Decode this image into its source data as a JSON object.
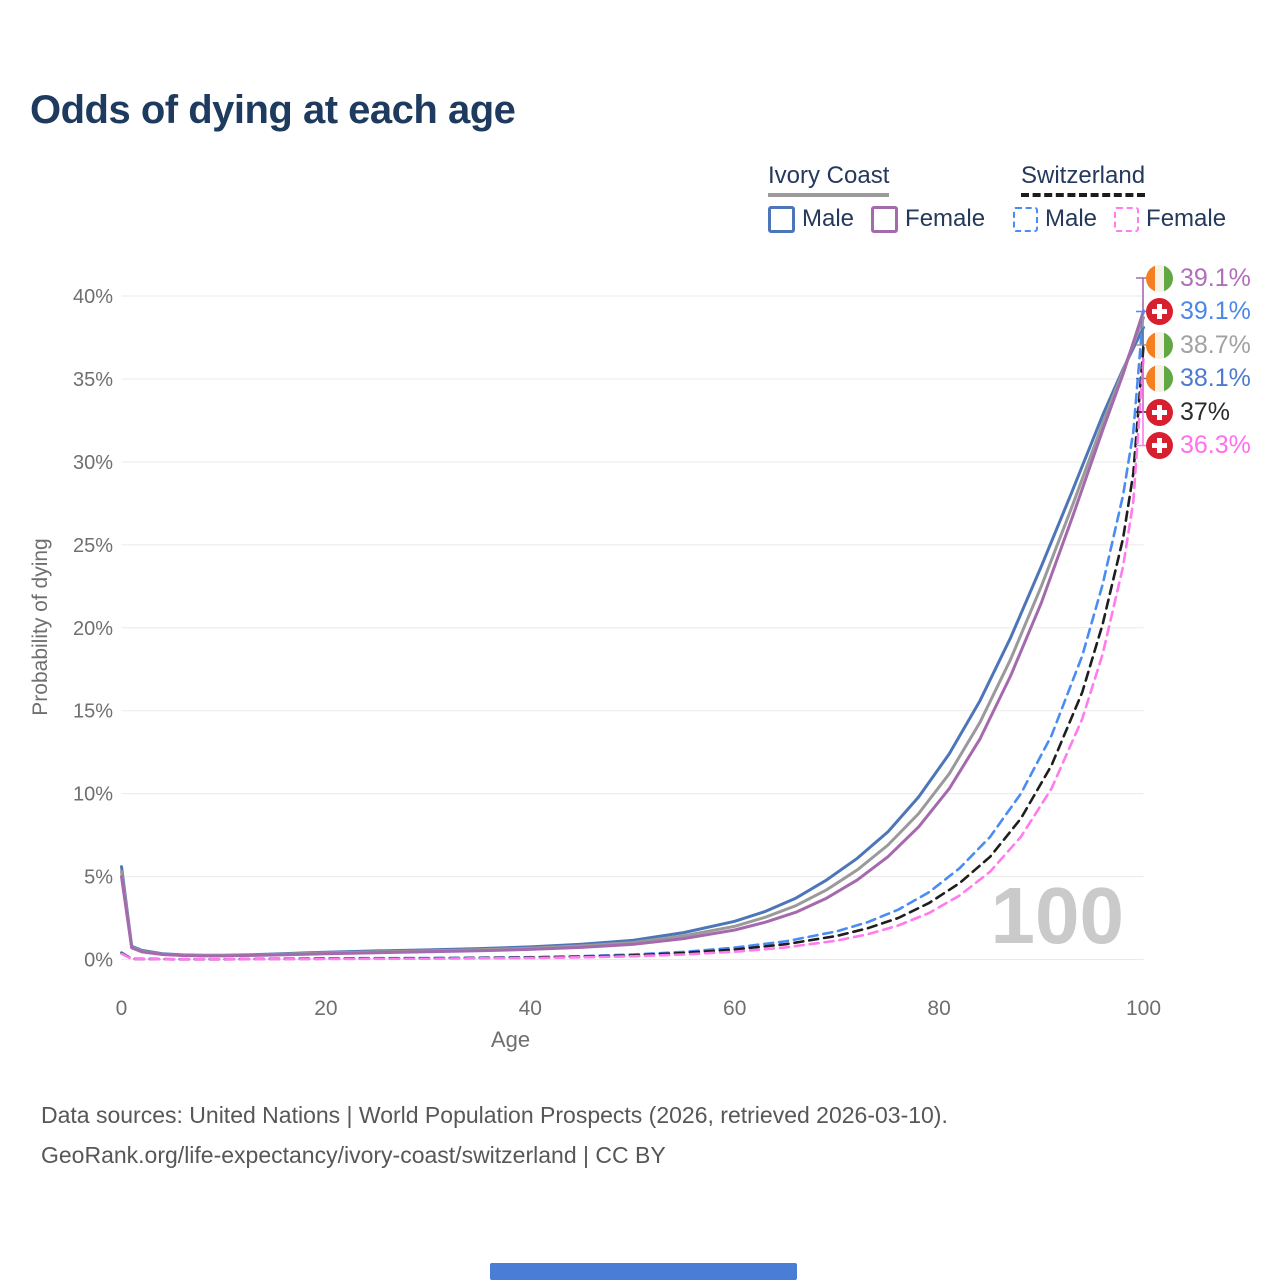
{
  "title": "Odds of dying at each age",
  "legend": {
    "groups": [
      {
        "name": "Ivory Coast",
        "line_style": "solid",
        "underline_color": "#9b9b9b",
        "items": [
          {
            "label": "Male",
            "color": "#4d76b8",
            "dashed": false
          },
          {
            "label": "Female",
            "color": "#a569ad",
            "dashed": false
          }
        ]
      },
      {
        "name": "Switzerland",
        "line_style": "dashed",
        "underline_color": "#1c1c1c",
        "items": [
          {
            "label": "Male",
            "color": "#4a8cf4",
            "dashed": true
          },
          {
            "label": "Female",
            "color": "#ff7bee",
            "dashed": true
          }
        ]
      }
    ]
  },
  "chart_data": {
    "type": "line",
    "title": "Odds of dying at each age",
    "xlabel": "Age",
    "ylabel": "Probability of dying",
    "xlim": [
      0,
      100
    ],
    "ylim": [
      0,
      40
    ],
    "x_ticks": [
      0,
      20,
      40,
      60,
      80,
      100
    ],
    "y_ticks": [
      0,
      5,
      10,
      15,
      20,
      25,
      30,
      35,
      40
    ],
    "y_tick_labels": [
      "0%",
      "5%",
      "10%",
      "15%",
      "20%",
      "25%",
      "30%",
      "35%",
      "40%"
    ],
    "grid": true,
    "legend_position": "top-right",
    "watermark": "100",
    "unit": "percent probability of dying at each age",
    "series": [
      {
        "name": "Ivory Coast Male",
        "country": "Ivory Coast",
        "sex": "Male",
        "flag": "ivory-coast",
        "color": "#4d76b8",
        "dashed": false,
        "end_value": 38.1,
        "end_label": "38.1%",
        "label_color": "#4d7ad0",
        "points": [
          [
            0,
            5.6
          ],
          [
            1,
            0.8
          ],
          [
            2,
            0.55
          ],
          [
            4,
            0.35
          ],
          [
            6,
            0.28
          ],
          [
            8,
            0.26
          ],
          [
            10,
            0.26
          ],
          [
            12,
            0.28
          ],
          [
            15,
            0.33
          ],
          [
            18,
            0.4
          ],
          [
            20,
            0.44
          ],
          [
            25,
            0.52
          ],
          [
            30,
            0.58
          ],
          [
            35,
            0.66
          ],
          [
            40,
            0.76
          ],
          [
            45,
            0.92
          ],
          [
            50,
            1.15
          ],
          [
            55,
            1.62
          ],
          [
            60,
            2.3
          ],
          [
            63,
            2.9
          ],
          [
            66,
            3.7
          ],
          [
            69,
            4.8
          ],
          [
            72,
            6.1
          ],
          [
            75,
            7.7
          ],
          [
            78,
            9.8
          ],
          [
            81,
            12.4
          ],
          [
            84,
            15.6
          ],
          [
            87,
            19.4
          ],
          [
            90,
            23.7
          ],
          [
            93,
            28.2
          ],
          [
            96,
            32.8
          ],
          [
            98,
            35.6
          ],
          [
            100,
            38.1
          ]
        ]
      },
      {
        "name": "Ivory Coast",
        "country": "Ivory Coast",
        "sex": "Both sexes",
        "flag": "ivory-coast",
        "color": "#9a9a9a",
        "dashed": false,
        "end_value": 38.7,
        "end_label": "38.7%",
        "label_color": "#a2a2a2",
        "points": [
          [
            0,
            5.3
          ],
          [
            1,
            0.75
          ],
          [
            2,
            0.5
          ],
          [
            4,
            0.32
          ],
          [
            6,
            0.26
          ],
          [
            8,
            0.24
          ],
          [
            10,
            0.24
          ],
          [
            12,
            0.26
          ],
          [
            15,
            0.3
          ],
          [
            18,
            0.36
          ],
          [
            20,
            0.4
          ],
          [
            25,
            0.46
          ],
          [
            30,
            0.52
          ],
          [
            35,
            0.59
          ],
          [
            40,
            0.68
          ],
          [
            45,
            0.82
          ],
          [
            50,
            1.02
          ],
          [
            55,
            1.42
          ],
          [
            60,
            2.0
          ],
          [
            63,
            2.55
          ],
          [
            66,
            3.25
          ],
          [
            69,
            4.2
          ],
          [
            72,
            5.4
          ],
          [
            75,
            6.9
          ],
          [
            78,
            8.8
          ],
          [
            81,
            11.2
          ],
          [
            84,
            14.3
          ],
          [
            87,
            18.1
          ],
          [
            90,
            22.5
          ],
          [
            93,
            27.3
          ],
          [
            96,
            32.3
          ],
          [
            98,
            35.5
          ],
          [
            100,
            38.7
          ]
        ]
      },
      {
        "name": "Ivory Coast Female",
        "country": "Ivory Coast",
        "sex": "Female",
        "flag": "ivory-coast",
        "color": "#a569ad",
        "dashed": false,
        "end_value": 39.1,
        "end_label": "39.1%",
        "label_color": "#b16fba",
        "points": [
          [
            0,
            5.0
          ],
          [
            1,
            0.7
          ],
          [
            2,
            0.46
          ],
          [
            4,
            0.3
          ],
          [
            6,
            0.24
          ],
          [
            8,
            0.22
          ],
          [
            10,
            0.22
          ],
          [
            12,
            0.24
          ],
          [
            15,
            0.27
          ],
          [
            18,
            0.32
          ],
          [
            20,
            0.35
          ],
          [
            25,
            0.41
          ],
          [
            30,
            0.47
          ],
          [
            35,
            0.53
          ],
          [
            40,
            0.61
          ],
          [
            45,
            0.73
          ],
          [
            50,
            0.91
          ],
          [
            55,
            1.26
          ],
          [
            60,
            1.78
          ],
          [
            63,
            2.25
          ],
          [
            66,
            2.85
          ],
          [
            69,
            3.7
          ],
          [
            72,
            4.8
          ],
          [
            75,
            6.2
          ],
          [
            78,
            8.0
          ],
          [
            81,
            10.3
          ],
          [
            84,
            13.3
          ],
          [
            87,
            17.1
          ],
          [
            90,
            21.5
          ],
          [
            93,
            26.6
          ],
          [
            96,
            31.9
          ],
          [
            98,
            35.3
          ],
          [
            100,
            39.1
          ]
        ]
      },
      {
        "name": "Switzerland Male",
        "country": "Switzerland",
        "sex": "Male",
        "flag": "switzerland",
        "color": "#4a8cf4",
        "dashed": true,
        "end_value": 39.1,
        "end_label": "39.1%",
        "label_color": "#4b87e8",
        "points": [
          [
            0,
            0.42
          ],
          [
            1,
            0.04
          ],
          [
            5,
            0.02
          ],
          [
            10,
            0.02
          ],
          [
            15,
            0.04
          ],
          [
            20,
            0.07
          ],
          [
            25,
            0.08
          ],
          [
            30,
            0.09
          ],
          [
            35,
            0.11
          ],
          [
            40,
            0.14
          ],
          [
            45,
            0.2
          ],
          [
            50,
            0.3
          ],
          [
            55,
            0.46
          ],
          [
            60,
            0.72
          ],
          [
            65,
            1.1
          ],
          [
            70,
            1.7
          ],
          [
            73,
            2.25
          ],
          [
            76,
            3.0
          ],
          [
            79,
            4.05
          ],
          [
            82,
            5.5
          ],
          [
            85,
            7.4
          ],
          [
            88,
            10.0
          ],
          [
            91,
            13.5
          ],
          [
            94,
            18.3
          ],
          [
            96,
            22.6
          ],
          [
            98,
            28.0
          ],
          [
            99,
            31.8
          ],
          [
            100,
            39.1
          ]
        ]
      },
      {
        "name": "Switzerland",
        "country": "Switzerland",
        "sex": "Both sexes",
        "flag": "switzerland",
        "color": "#1e1e1e",
        "dashed": true,
        "end_value": 37,
        "end_label": "37%",
        "label_color": "#2b2b2b",
        "points": [
          [
            0,
            0.38
          ],
          [
            1,
            0.035
          ],
          [
            5,
            0.015
          ],
          [
            10,
            0.015
          ],
          [
            15,
            0.03
          ],
          [
            20,
            0.05
          ],
          [
            25,
            0.06
          ],
          [
            30,
            0.07
          ],
          [
            35,
            0.09
          ],
          [
            40,
            0.12
          ],
          [
            45,
            0.17
          ],
          [
            50,
            0.25
          ],
          [
            55,
            0.39
          ],
          [
            60,
            0.6
          ],
          [
            65,
            0.92
          ],
          [
            70,
            1.42
          ],
          [
            73,
            1.88
          ],
          [
            76,
            2.5
          ],
          [
            79,
            3.4
          ],
          [
            82,
            4.6
          ],
          [
            85,
            6.2
          ],
          [
            88,
            8.5
          ],
          [
            91,
            11.7
          ],
          [
            94,
            16.1
          ],
          [
            96,
            20.2
          ],
          [
            98,
            25.4
          ],
          [
            99,
            29.3
          ],
          [
            100,
            37.0
          ]
        ]
      },
      {
        "name": "Switzerland Female",
        "country": "Switzerland",
        "sex": "Female",
        "flag": "switzerland",
        "color": "#ff7bee",
        "dashed": true,
        "end_value": 36.3,
        "end_label": "36.3%",
        "label_color": "#ff70eb",
        "points": [
          [
            0,
            0.35
          ],
          [
            1,
            0.03
          ],
          [
            5,
            0.012
          ],
          [
            10,
            0.012
          ],
          [
            15,
            0.02
          ],
          [
            20,
            0.03
          ],
          [
            25,
            0.04
          ],
          [
            30,
            0.05
          ],
          [
            35,
            0.07
          ],
          [
            40,
            0.09
          ],
          [
            45,
            0.13
          ],
          [
            50,
            0.19
          ],
          [
            55,
            0.3
          ],
          [
            60,
            0.47
          ],
          [
            65,
            0.73
          ],
          [
            70,
            1.14
          ],
          [
            73,
            1.52
          ],
          [
            76,
            2.05
          ],
          [
            79,
            2.8
          ],
          [
            82,
            3.85
          ],
          [
            85,
            5.3
          ],
          [
            88,
            7.4
          ],
          [
            91,
            10.3
          ],
          [
            94,
            14.5
          ],
          [
            96,
            18.4
          ],
          [
            98,
            23.7
          ],
          [
            99,
            27.6
          ],
          [
            100,
            36.3
          ]
        ]
      }
    ]
  },
  "footer": {
    "line1": "Data sources: United Nations | World Population Prospects (2026, retrieved 2026-03-10).",
    "line2": "GeoRank.org/life-expectancy/ivory-coast/switzerland | CC BY"
  }
}
